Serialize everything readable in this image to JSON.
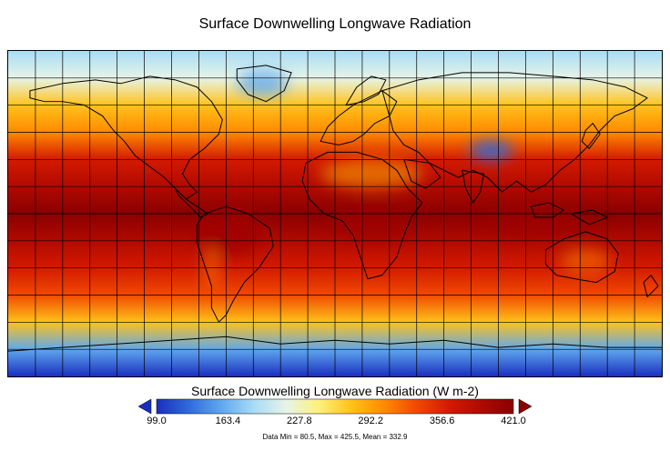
{
  "title": "Surface Downwelling Longwave Radiation",
  "colorbar": {
    "title": "Surface Downwelling Longwave Radiation (W m-2)",
    "ticks": [
      "99.0",
      "163.4",
      "227.8",
      "292.2",
      "356.6",
      "421.0"
    ],
    "min": 99.0,
    "max": 421.0,
    "colors": [
      "#1a2fbf",
      "#2f6bdc",
      "#5fa8ee",
      "#a8dcf5",
      "#e6f4e8",
      "#fff17a",
      "#ffc21a",
      "#ff8a00",
      "#f04a00",
      "#d41a00",
      "#b00a00",
      "#8a0000"
    ]
  },
  "stats": "Data Min = 80.5, Max = 425.5, Mean = 332.9",
  "map": {
    "projection": "equirectangular",
    "grid_spacing_degrees": 15,
    "latitude_profile_W_m2": [
      {
        "lat": 90,
        "value": 175
      },
      {
        "lat": 75,
        "value": 230
      },
      {
        "lat": 60,
        "value": 265
      },
      {
        "lat": 45,
        "value": 310
      },
      {
        "lat": 30,
        "value": 360
      },
      {
        "lat": 15,
        "value": 400
      },
      {
        "lat": 0,
        "value": 410
      },
      {
        "lat": -15,
        "value": 400
      },
      {
        "lat": -30,
        "value": 370
      },
      {
        "lat": -45,
        "value": 330
      },
      {
        "lat": -60,
        "value": 280
      },
      {
        "lat": -75,
        "value": 150
      },
      {
        "lat": -90,
        "value": 110
      }
    ]
  }
}
